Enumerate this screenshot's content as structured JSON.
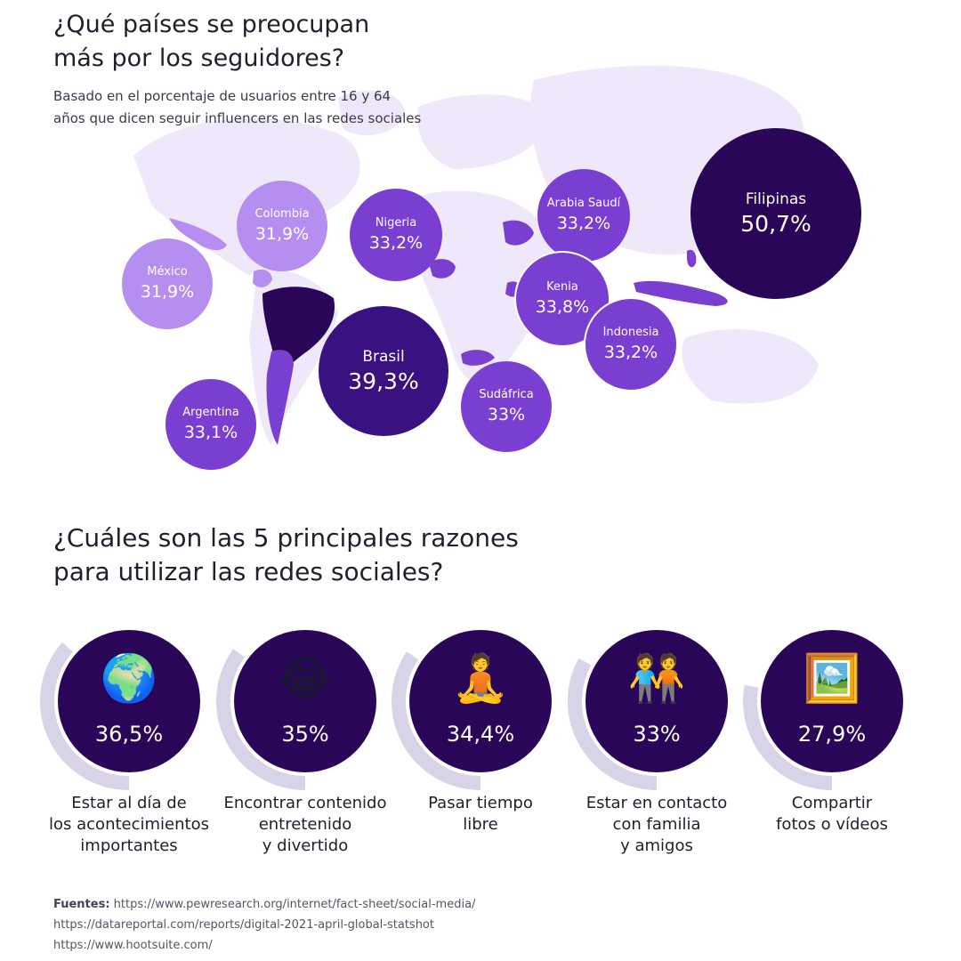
{
  "map_title": "¿Qué países se preocupan\nmás por los seguidores?",
  "map_subtitle": "Basado en el porcentaje de usuarios entre 16 y 64\naños que dicen seguir influencers en las redes sociales",
  "chart_data": [
    {
      "type": "bubble-map",
      "title": "¿Qué países se preocupan más por los seguidores?",
      "subtitle": "Basado en el porcentaje de usuarios entre 16 y 64 años que dicen seguir influencers en las redes sociales",
      "points": [
        {
          "country": "México",
          "label": "31,9%",
          "value": 31.9
        },
        {
          "country": "Colombia",
          "label": "31,9%",
          "value": 31.9
        },
        {
          "country": "Nigeria",
          "label": "33,2%",
          "value": 33.2
        },
        {
          "country": "Arabia Saudí",
          "label": "33,2%",
          "value": 33.2
        },
        {
          "country": "Filipinas",
          "label": "50,7%",
          "value": 50.7
        },
        {
          "country": "Kenia",
          "label": "33,8%",
          "value": 33.8
        },
        {
          "country": "Indonesia",
          "label": "33,2%",
          "value": 33.2
        },
        {
          "country": "Brasil",
          "label": "39,3%",
          "value": 39.3
        },
        {
          "country": "Sudáfrica",
          "label": "33%",
          "value": 33
        },
        {
          "country": "Argentina",
          "label": "33,1%",
          "value": 33.1
        }
      ],
      "colors": {
        "low": "#b68ef0",
        "mid": "#7a3fd1",
        "high": "#3a1180",
        "top": "#2a0658"
      }
    },
    {
      "type": "radial-bar",
      "title": "¿Cuáles son las 5 principales razones para utilizar las redes sociales?",
      "items": [
        {
          "label": "Estar al día de los acontecimientos importantes",
          "value_label": "36,5%",
          "value": 36.5,
          "icon": "globe-africa-icon",
          "glyph": "🌍"
        },
        {
          "label": "Encontrar contenido entretenido y divertido",
          "value_label": "35%",
          "value": 35,
          "icon": "tears-of-joy-icon",
          "glyph": "😂"
        },
        {
          "label": "Pasar tiempo libre",
          "value_label": "34,4%",
          "value": 34.4,
          "icon": "meditation-icon",
          "glyph": "🧘"
        },
        {
          "label": "Estar en contacto con familia y amigos",
          "value_label": "33%",
          "value": 33,
          "icon": "people-holding-hands-icon",
          "glyph": "🧑‍🤝‍🧑"
        },
        {
          "label": "Compartir fotos o vídeos",
          "value_label": "27,9%",
          "value": 27.9,
          "icon": "framed-picture-icon",
          "glyph": "🖼️"
        }
      ],
      "colors": {
        "circle": "#2a0658",
        "arc": "#d9d3e8"
      }
    }
  ],
  "reasons_title": "¿Cuáles son las 5 principales razones\npara utilizar las redes sociales?",
  "reason_labels": [
    "Estar al día de\nlos acontecimientos\nimportantes",
    "Encontrar contenido\nentretenido\ny divertido",
    "Pasar tiempo\nlibre",
    "Estar en contacto\ncon familia\ny amigos",
    "Compartir\nfotos o vídeos"
  ],
  "sources": {
    "label": "Fuentes:",
    "links": [
      "https://www.pewresearch.org/internet/fact-sheet/social-media/",
      "https://datareportal.com/reports/digital-2021-april-global-statshot",
      "https://www.hootsuite.com/"
    ]
  }
}
